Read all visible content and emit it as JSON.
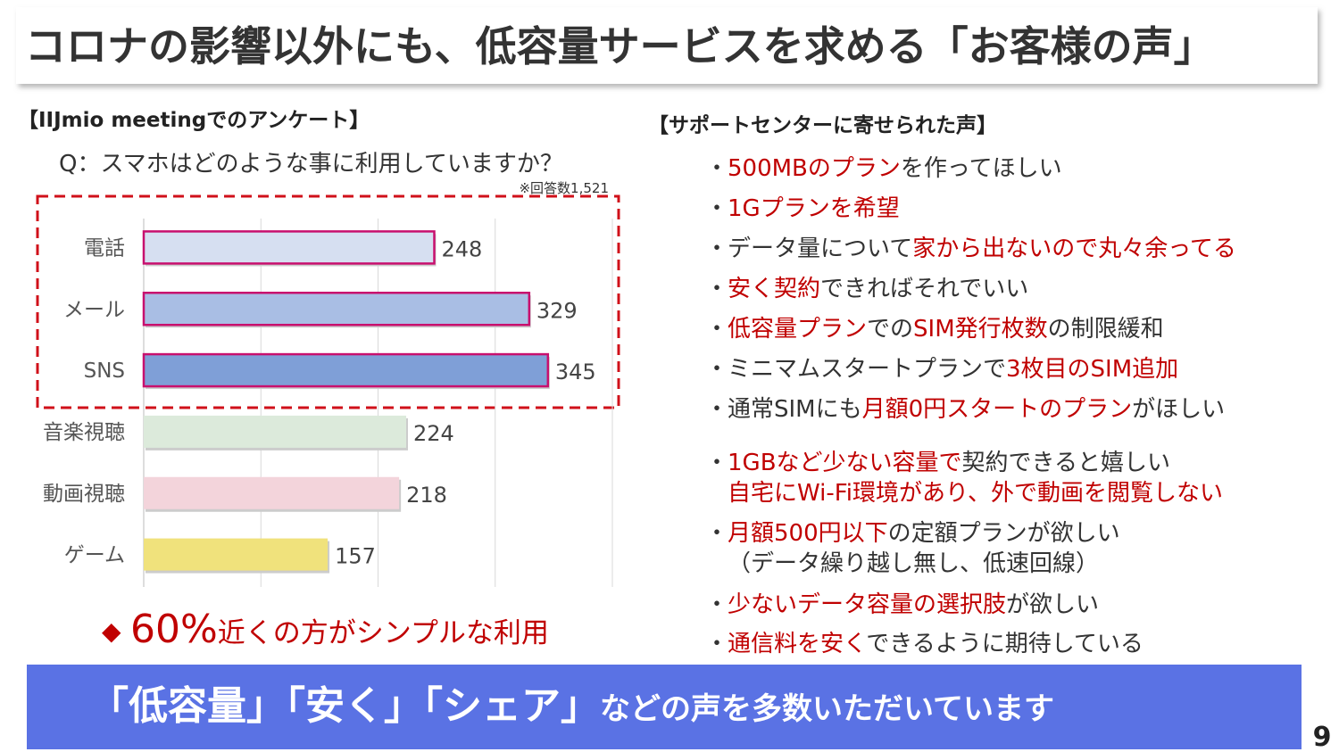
{
  "title": "コロナの影響以外にも、低容量サービスを求める「お客様の声」",
  "survey": {
    "heading": "【IIJmio meetingでのアンケート】",
    "question": "Q：スマホはどのような事に利用していますか？",
    "note": "※回答数1,521"
  },
  "chart_data": {
    "type": "bar",
    "orientation": "horizontal",
    "categories": [
      "電話",
      "メール",
      "SNS",
      "音楽視聴",
      "動画視聴",
      "ゲーム"
    ],
    "values": [
      248,
      329,
      345,
      224,
      218,
      157
    ],
    "colors": [
      "#d6dff1",
      "#a9bee4",
      "#7f9fd7",
      "#dceadb",
      "#f3d4db",
      "#f0e27c"
    ],
    "edgecolors": [
      "#c8106e",
      "#c8106e",
      "#c8106e",
      null,
      null,
      null
    ],
    "xlim": [
      0,
      400
    ],
    "xticks": [
      0,
      100,
      200,
      300,
      400
    ],
    "grid": true
  },
  "highlight": {
    "marker": "◆",
    "emphasis": "60%",
    "text": "近くの方がシンプルな利用"
  },
  "support": {
    "heading": "【サポートセンターに寄せられた声】",
    "bullet": "・",
    "items": [
      [
        [
          {
            "text": "500MBのプラン",
            "emphasis": true
          },
          {
            "text": "を作ってほしい",
            "emphasis": false
          }
        ]
      ],
      [
        [
          {
            "text": "1Gプランを希望",
            "emphasis": true
          }
        ]
      ],
      [
        [
          {
            "text": "データ量について",
            "emphasis": false
          },
          {
            "text": "家から出ないので丸々余ってる",
            "emphasis": true
          }
        ]
      ],
      [
        [
          {
            "text": "安く契約",
            "emphasis": true
          },
          {
            "text": "できればそれでいい",
            "emphasis": false
          }
        ]
      ],
      [
        [
          {
            "text": "低容量プラン",
            "emphasis": true
          },
          {
            "text": "での",
            "emphasis": false
          },
          {
            "text": "SIM発行枚数",
            "emphasis": true
          },
          {
            "text": "の制限緩和",
            "emphasis": false
          }
        ]
      ],
      [
        [
          {
            "text": "ミニマムスタートプランで",
            "emphasis": false
          },
          {
            "text": "3枚目のSIM追加",
            "emphasis": true
          }
        ]
      ],
      [
        [
          {
            "text": "通常SIMにも",
            "emphasis": false
          },
          {
            "text": "月額0円スタートのプラン",
            "emphasis": true
          },
          {
            "text": "がほしい",
            "emphasis": false
          }
        ]
      ],
      [
        [
          {
            "text": "1GBなど少ない容量で",
            "emphasis": true
          },
          {
            "text": "契約できると嬉しい",
            "emphasis": false
          }
        ],
        [
          {
            "text": "自宅にWi-Fi環境があり、外で動画を閲覧しない",
            "emphasis": true
          }
        ]
      ],
      [
        [
          {
            "text": "月額500円以下",
            "emphasis": true
          },
          {
            "text": "の定額プランが欲しい",
            "emphasis": false
          }
        ],
        [
          {
            "text": "（データ繰り越し無し、低速回線）",
            "emphasis": false
          }
        ]
      ],
      [
        [
          {
            "text": "少ないデータ容量の選択肢",
            "emphasis": true
          },
          {
            "text": "が欲しい",
            "emphasis": false
          }
        ]
      ],
      [
        [
          {
            "text": "通信料を安く",
            "emphasis": true
          },
          {
            "text": "できるように期待している",
            "emphasis": false
          }
        ]
      ]
    ]
  },
  "banner": {
    "emphasis": "「低容量」「安く」「シェア」",
    "text": "などの声を多数いただいています"
  },
  "page_number": "9"
}
